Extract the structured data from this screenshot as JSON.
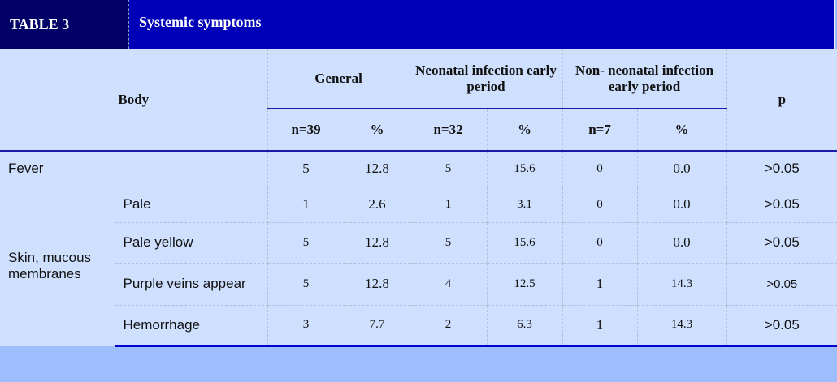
{
  "title": {
    "label": "TABLE 3",
    "text": "Systemic symptoms"
  },
  "headers": {
    "body": "Body",
    "general": "General",
    "neonatal": "Neonatal infection early period",
    "non_neonatal": "Non- neonatal infection early period",
    "p": "p",
    "sub": [
      "n=39",
      "%",
      "n=32",
      "%",
      "n=7",
      "%"
    ]
  },
  "rows": {
    "fever": {
      "label": "Fever",
      "cells": [
        "5",
        "12.8",
        "5",
        "15.6",
        "0",
        "0.0",
        ">0.05"
      ]
    },
    "skin_group": "Skin, mucous membranes",
    "skin": [
      {
        "label": "Pale",
        "cells": [
          "1",
          "2.6",
          "1",
          "3.1",
          "0",
          "0.0",
          ">0.05"
        ]
      },
      {
        "label": "Pale yellow",
        "cells": [
          "5",
          "12.8",
          "5",
          "15.6",
          "0",
          "0.0",
          ">0.05"
        ]
      },
      {
        "label": "Purple veins appear",
        "cells": [
          "5",
          "12.8",
          "4",
          "12.5",
          "1",
          "14.3",
          ">0.05"
        ]
      },
      {
        "label": "Hemorrhage",
        "cells": [
          "3",
          "7.7",
          "2",
          "6.3",
          "1",
          "14.3",
          ">0.05"
        ]
      }
    ]
  }
}
